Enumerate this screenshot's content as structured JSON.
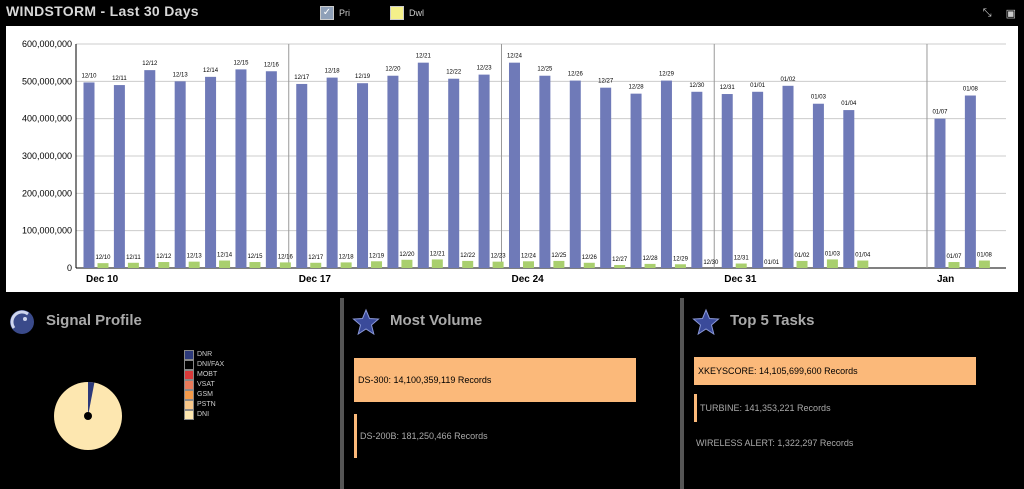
{
  "header": {
    "title": "WINDSTORM - Last 30 Days",
    "legend": [
      {
        "label": "Pri",
        "color": "#6f7ab8",
        "checked": true
      },
      {
        "label": "Dwl",
        "color": "#f4f08a",
        "checked": false
      }
    ],
    "tools": [
      "resize-icon",
      "window-icon"
    ]
  },
  "chart_data": {
    "type": "bar",
    "ylim": [
      0,
      600000000
    ],
    "yticks": [
      "0",
      "100,000,000",
      "200,000,000",
      "300,000,000",
      "400,000,000",
      "500,000,000",
      "600,000,000"
    ],
    "week_labels": [
      "Dec 10",
      "Dec 17",
      "Dec 24",
      "Dec 31",
      "Jan"
    ],
    "categories": [
      "12/10",
      "12/11",
      "12/12",
      "12/13",
      "12/14",
      "12/15",
      "12/16",
      "12/17",
      "12/18",
      "12/19",
      "12/20",
      "12/21",
      "12/22",
      "12/23",
      "12/24",
      "12/25",
      "12/26",
      "12/27",
      "12/28",
      "12/29",
      "12/30",
      "12/31",
      "01/01",
      "01/02",
      "01/03",
      "01/04",
      "01/07",
      "01/08"
    ],
    "series": [
      {
        "name": "Pri",
        "color": "#6f7ab8",
        "values": [
          497000000,
          490000000,
          530000000,
          500000000,
          512000000,
          532000000,
          527000000,
          493000000,
          510000000,
          495000000,
          515000000,
          550000000,
          507000000,
          518000000,
          550000000,
          515000000,
          502000000,
          483000000,
          467000000,
          502000000,
          472000000,
          466000000,
          472000000,
          488000000,
          440000000,
          423000000,
          400000000,
          462000000
        ]
      },
      {
        "name": "Dwl",
        "color": "#a9cf6e",
        "values": [
          13000000,
          14000000,
          16000000,
          17000000,
          20000000,
          16000000,
          15000000,
          14000000,
          15000000,
          18000000,
          22000000,
          23000000,
          19000000,
          17000000,
          18000000,
          19000000,
          14000000,
          8000000,
          11000000,
          10000000,
          0,
          12000000,
          0,
          19000000,
          23000000,
          20000000,
          16000000,
          20000000
        ]
      }
    ],
    "dwl_labels": [
      "12/10",
      "12/11",
      "12/12",
      "12/13",
      "12/14",
      "12/15",
      "12/16",
      "12/17",
      "12/18",
      "12/19",
      "12/20",
      "12/21",
      "12/22",
      "12/23",
      "12/24",
      "12/25",
      "12/26",
      "12/27",
      "12/28",
      "12/29",
      "12/30",
      "12/31",
      "01/01",
      "01/02",
      "01/03",
      "01/04",
      "01/07",
      "01/08"
    ]
  },
  "panels": {
    "signal_profile": {
      "title": "Signal Profile",
      "legend": [
        {
          "label": "DNR",
          "color": "#2d3a7a"
        },
        {
          "label": "DNI/FAX",
          "color": "#000000"
        },
        {
          "label": "MOBT",
          "color": "#d83a3a"
        },
        {
          "label": "VSAT",
          "color": "#e87a5a"
        },
        {
          "label": "GSM",
          "color": "#f49a4a"
        },
        {
          "label": "PSTN",
          "color": "#f8c88a"
        },
        {
          "label": "DNI",
          "color": "#fde7b0"
        }
      ],
      "pie": [
        {
          "label": "DNI",
          "value": 97,
          "color": "#fde7b0"
        },
        {
          "label": "DNR",
          "value": 3,
          "color": "#2d3a7a"
        }
      ]
    },
    "most_volume": {
      "title": "Most Volume",
      "items": [
        {
          "label": "DS-300: 14,100,359,119 Records",
          "value": 14100359119
        },
        {
          "label": "DS-200B: 181,250,466 Records",
          "value": 181250466
        }
      ]
    },
    "top_tasks": {
      "title": "Top 5 Tasks",
      "items": [
        {
          "label": "XKEYSCORE: 14,105,699,600 Records",
          "value": 14105699600
        },
        {
          "label": "TURBINE: 141,353,221 Records",
          "value": 141353221
        },
        {
          "label": "WIRELESS ALERT: 1,322,297 Records",
          "value": 1322297
        }
      ]
    }
  }
}
